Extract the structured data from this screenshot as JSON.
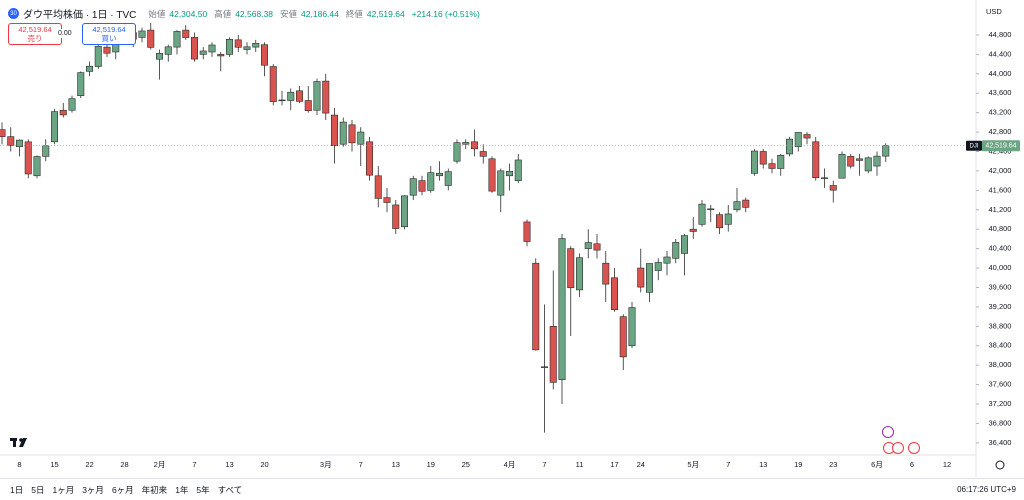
{
  "header": {
    "symbol_badge": "30",
    "title": "ダウ平均株価 · 1日 · TVC",
    "ohlc": [
      {
        "label": "始値",
        "value": "42,304.50"
      },
      {
        "label": "高値",
        "value": "42,568.38"
      },
      {
        "label": "安値",
        "value": "42,186.44"
      },
      {
        "label": "終値",
        "value": "42,519.64"
      }
    ],
    "change": "+214.16 (+0.51%)"
  },
  "trade": {
    "sell_price": "42,519.64",
    "sell_label": "売り",
    "spread": "0.00",
    "buy_price": "42,519.64",
    "buy_label": "買い"
  },
  "currency": "USD",
  "toolbar": {
    "ranges": [
      "1日",
      "5日",
      "1ヶ月",
      "3ヶ月",
      "6ヶ月",
      "年初来",
      "1年",
      "5年",
      "すべて"
    ],
    "clock": "06:17:26 UTC+9"
  },
  "chart_data": {
    "type": "candlestick",
    "up_color": "#6ba583",
    "down_color": "#d9534f",
    "categories": [
      null,
      null,
      "8",
      null,
      null,
      null,
      "15",
      null,
      null,
      null,
      "22",
      null,
      null,
      null,
      "28",
      null,
      null,
      null,
      "2月",
      null,
      null,
      null,
      "7",
      null,
      null,
      null,
      "13",
      null,
      null,
      null,
      "20",
      null,
      null,
      null,
      null,
      null,
      null,
      "3月",
      null,
      null,
      null,
      "7",
      null,
      null,
      null,
      "13",
      null,
      null,
      null,
      "19",
      null,
      null,
      null,
      "25",
      null,
      null,
      null,
      null,
      "4月",
      null,
      null,
      null,
      "7",
      null,
      null,
      null,
      "11",
      null,
      null,
      null,
      "17",
      null,
      null,
      "24",
      null,
      null,
      null,
      null,
      null,
      "5月",
      null,
      null,
      null,
      "7",
      null,
      null,
      null,
      "13",
      null,
      null,
      null,
      "19",
      null,
      null,
      null,
      "23",
      null,
      null,
      null,
      null,
      "6月",
      null,
      null,
      null,
      "6",
      null,
      null,
      null,
      "12"
    ],
    "open": [
      42850,
      42706,
      42500,
      42600,
      41900,
      42300,
      42600,
      43250,
      43250,
      43550,
      44050,
      44150,
      44550,
      44450,
      44700,
      44850,
      44750,
      44900,
      44300,
      44400,
      44550,
      44900,
      44750,
      44400,
      44450,
      44400,
      44400,
      44700,
      44500,
      44550,
      44600,
      44150,
      43450,
      43450,
      43650,
      43450,
      43250,
      43850,
      43150,
      42550,
      42950,
      42550,
      42600,
      41900,
      41450,
      41300,
      40850,
      41500,
      41800,
      41600,
      41900,
      41700,
      42200,
      42550,
      42600,
      42400,
      42250,
      41500,
      41900,
      41800,
      40950,
      40100,
      37950,
      38800,
      37700,
      40400,
      39550,
      40400,
      40500,
      40100,
      39800,
      39000,
      38400,
      40000,
      39500,
      39950,
      40100,
      40200,
      40300,
      40800,
      40900,
      41200,
      41100,
      40900,
      41200,
      41400,
      41950,
      42400,
      42150,
      42050,
      42350,
      42500,
      42750,
      42600,
      41850,
      41700,
      41850,
      42300,
      42250,
      42000,
      42100,
      42304.5,
      null,
      null,
      null,
      null,
      null,
      null,
      null
    ],
    "high": [
      43000,
      42900,
      42650,
      42650,
      42320,
      42650,
      43280,
      43400,
      43550,
      44050,
      44250,
      44600,
      44600,
      44780,
      44900,
      44900,
      44950,
      45050,
      44500,
      44600,
      44900,
      45000,
      44850,
      44550,
      44650,
      44450,
      44750,
      44800,
      44650,
      44700,
      44650,
      44200,
      43650,
      43700,
      43750,
      43750,
      43900,
      44000,
      43300,
      43100,
      43050,
      42900,
      42700,
      42100,
      41650,
      41400,
      41500,
      41900,
      41900,
      42100,
      42200,
      42050,
      42650,
      42650,
      42850,
      42550,
      42300,
      42050,
      42150,
      42350,
      41000,
      40200,
      39250,
      39950,
      40700,
      40450,
      40300,
      40800,
      40700,
      40350,
      40000,
      39050,
      39300,
      40400,
      40100,
      40200,
      40350,
      40600,
      40700,
      41050,
      41400,
      41300,
      41150,
      41300,
      41650,
      41450,
      42450,
      42450,
      42250,
      42350,
      42700,
      42800,
      42800,
      42700,
      42050,
      41800,
      42400,
      42350,
      42350,
      42300,
      42400,
      42568.38,
      null,
      null,
      null,
      null,
      null,
      null,
      null
    ],
    "low": [
      42550,
      42400,
      42300,
      41850,
      41850,
      42200,
      42550,
      43100,
      43200,
      43500,
      43950,
      44100,
      44350,
      44300,
      44600,
      44550,
      44650,
      44500,
      43880,
      44250,
      44400,
      44700,
      44250,
      44300,
      44350,
      44050,
      44350,
      44450,
      44400,
      44450,
      43950,
      43350,
      43350,
      43250,
      43400,
      43200,
      43150,
      43050,
      42150,
      42500,
      42400,
      42100,
      41800,
      41250,
      41150,
      40700,
      40800,
      41400,
      41500,
      41550,
      41800,
      41600,
      42150,
      42450,
      42300,
      42150,
      41550,
      41150,
      41600,
      41750,
      40450,
      38300,
      36612,
      37500,
      37200,
      38600,
      39400,
      40200,
      40200,
      39300,
      39100,
      37900,
      38350,
      39500,
      39300,
      39750,
      39850,
      40100,
      39850,
      40600,
      40850,
      40950,
      40700,
      40750,
      41150,
      41150,
      41900,
      42050,
      41950,
      41900,
      42300,
      42400,
      42550,
      41800,
      41650,
      41350,
      41850,
      42050,
      41900,
      41950,
      41900,
      42186.44,
      null,
      null,
      null,
      null,
      null,
      null,
      null
    ],
    "close": [
      42706,
      42528,
      42635,
      41938,
      42297,
      42518,
      43221,
      43153,
      43488,
      44025,
      44157,
      44565,
      44424,
      44713,
      44850,
      44714,
      44882,
      44544,
      44421,
      44556,
      44873,
      44747,
      44303,
      44470,
      44593,
      44368,
      44711,
      44546,
      44556,
      44627,
      44176,
      43428,
      43461,
      43621,
      43433,
      43240,
      43841,
      43191,
      42520,
      43006,
      42579,
      42801,
      41912,
      41433,
      41350,
      40813,
      41488,
      41841,
      41581,
      41964,
      41953,
      41985,
      42583,
      42587,
      42455,
      42300,
      41584,
      42002,
      41990,
      42226,
      40546,
      38315,
      37966,
      37646,
      40608,
      39594,
      40213,
      40525,
      40369,
      39669,
      39142,
      38170,
      39187,
      39607,
      40093,
      40114,
      40228,
      40528,
      40669,
      40753,
      41317,
      41219,
      40829,
      41114,
      41368,
      41249,
      42410,
      42140,
      42051,
      42323,
      42655,
      42792,
      42677,
      41860,
      41859,
      41603,
      42343,
      42098,
      42216,
      42270,
      42305,
      42519.64,
      null,
      null,
      null,
      null,
      null,
      null,
      null
    ],
    "ylim": [
      36150,
      45520
    ],
    "yticks": [
      {
        "value": 44800,
        "label": "44,800"
      },
      {
        "value": 44400,
        "label": "44,400"
      },
      {
        "value": 44000,
        "label": "44,000"
      },
      {
        "value": 43600,
        "label": "43,600"
      },
      {
        "value": 43200,
        "label": "43,200"
      },
      {
        "value": 42800,
        "label": "42,800"
      },
      {
        "value": 42400,
        "label": "42,400"
      },
      {
        "value": 42000,
        "label": "42,000"
      },
      {
        "value": 41600,
        "label": "41,600"
      },
      {
        "value": 41200,
        "label": "41,200"
      },
      {
        "value": 40800,
        "label": "40,800"
      },
      {
        "value": 40400,
        "label": "40,400"
      },
      {
        "value": 40000,
        "label": "40,000"
      },
      {
        "value": 39600,
        "label": "39,600"
      },
      {
        "value": 39200,
        "label": "39,200"
      },
      {
        "value": 38800,
        "label": "38,800"
      },
      {
        "value": 38400,
        "label": "38,400"
      },
      {
        "value": 38000,
        "label": "38,000"
      },
      {
        "value": 37600,
        "label": "37,600"
      },
      {
        "value": 37200,
        "label": "37,200"
      },
      {
        "value": 36800,
        "label": "36,800"
      },
      {
        "value": 36400,
        "label": "36,400"
      }
    ],
    "grid": false,
    "price_label": {
      "symbol": "DJI",
      "value": "42,519.64"
    }
  }
}
